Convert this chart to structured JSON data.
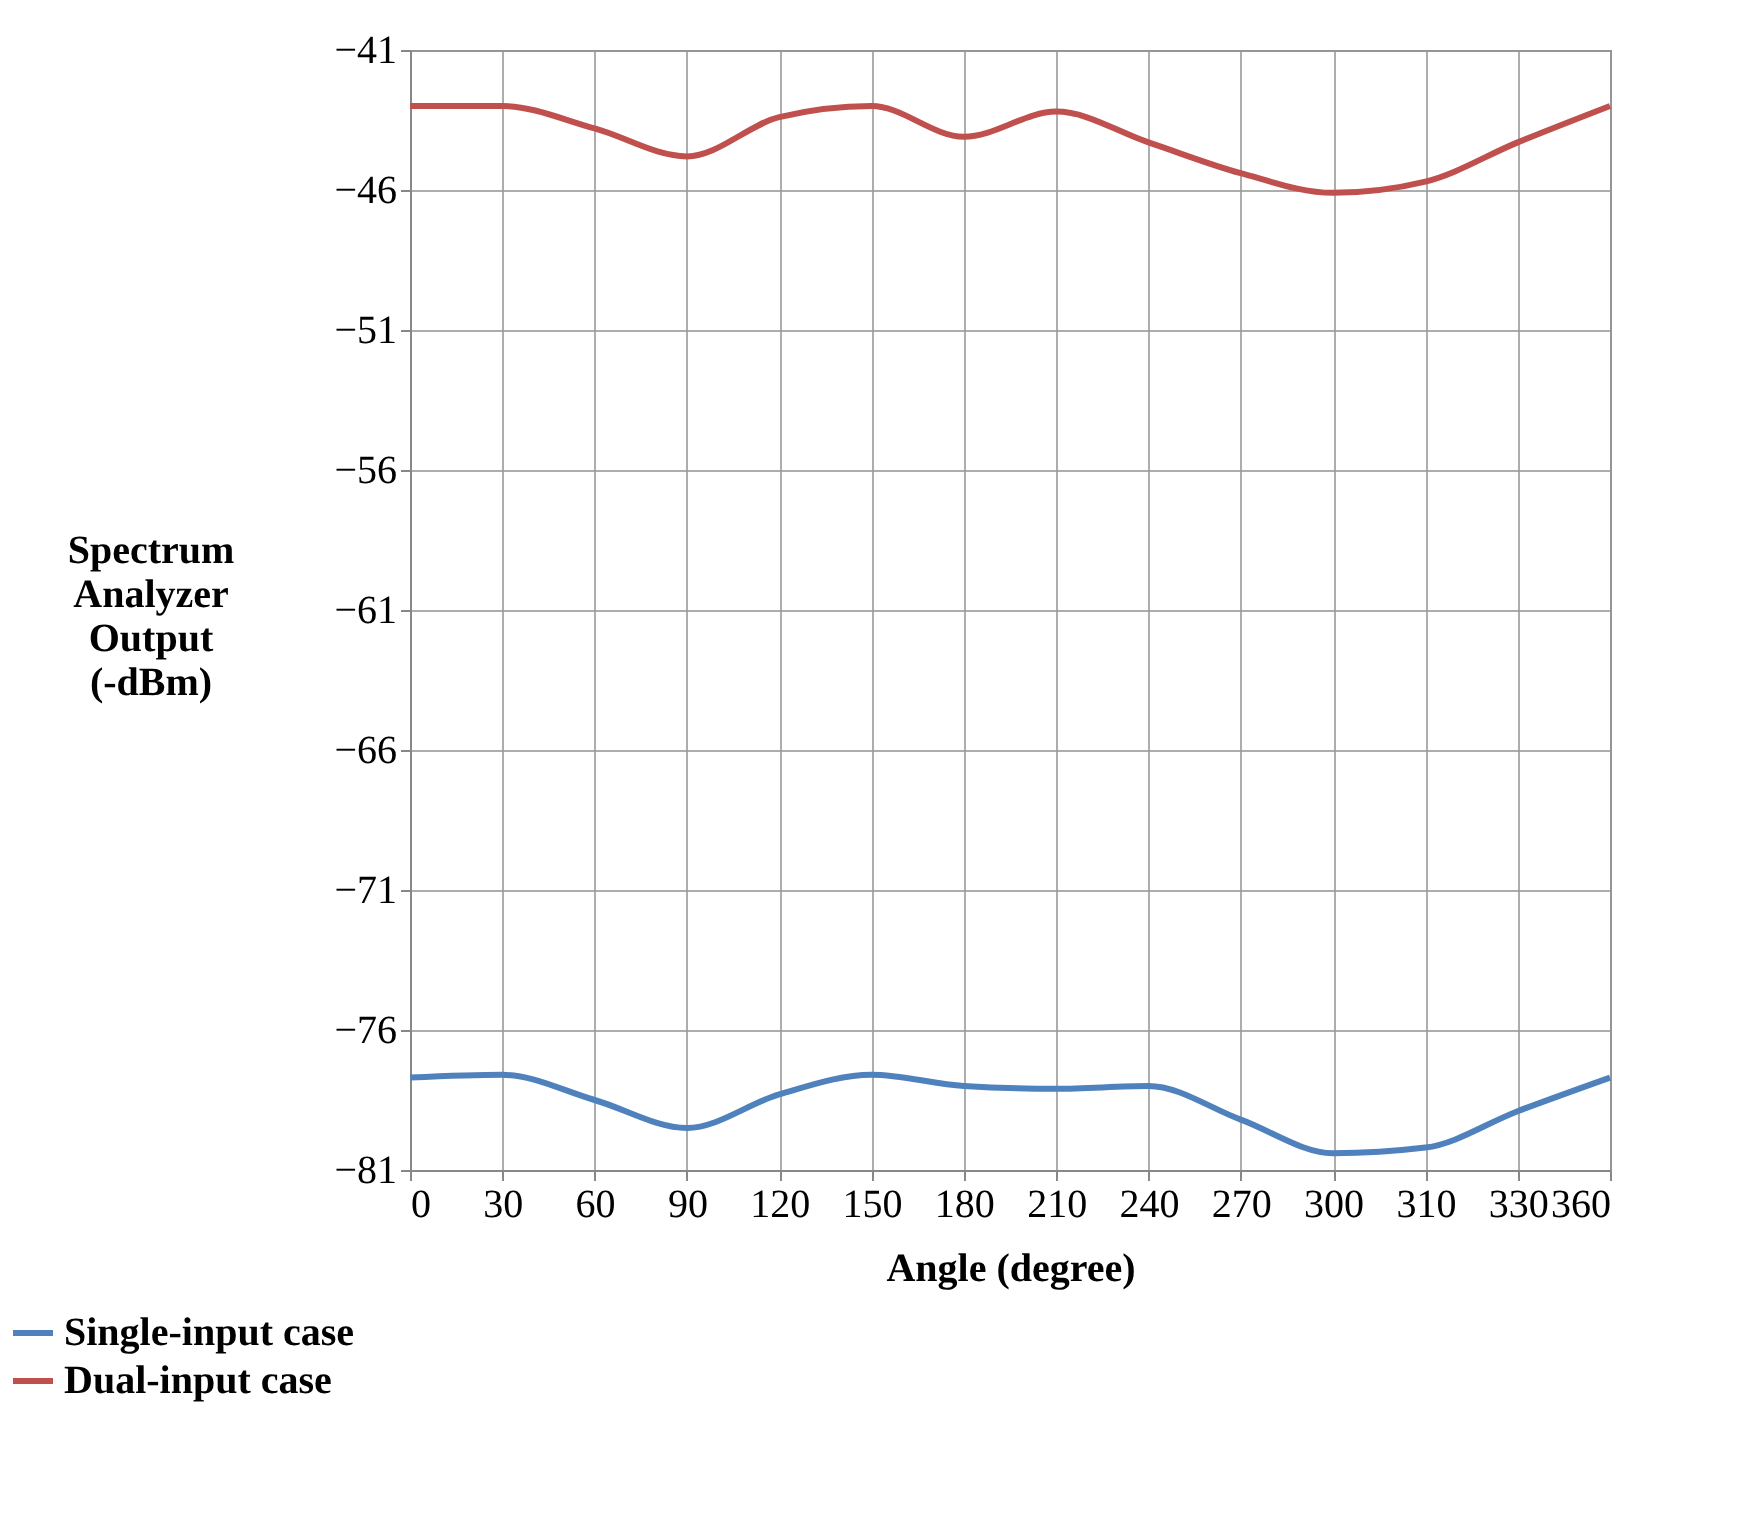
{
  "chart_data": {
    "type": "line",
    "xlabel": "Angle (degree)",
    "ylabel": "Spectrum\nAnalyzer\nOutput\n(-dBm)",
    "categories": [
      "0",
      "30",
      "60",
      "90",
      "120",
      "150",
      "180",
      "210",
      "240",
      "270",
      "300",
      "310",
      "330",
      "360"
    ],
    "series": [
      {
        "name": "Single-input case",
        "color": "#4f81bd",
        "values": [
          -77.7,
          -77.6,
          -78.5,
          -79.5,
          -78.3,
          -77.6,
          -78.0,
          -78.1,
          -78.0,
          -79.2,
          -80.4,
          -80.2,
          -78.9,
          -77.7
        ]
      },
      {
        "name": "Dual-input case",
        "color": "#c0504d",
        "values": [
          -43.0,
          -43.0,
          -43.8,
          -44.8,
          -43.4,
          -43.0,
          -44.1,
          -43.2,
          -44.3,
          -45.4,
          -46.1,
          -45.7,
          -44.3,
          -43.0
        ]
      }
    ],
    "ylim": [
      -81,
      -41
    ],
    "yticks": [
      -81,
      -76,
      -71,
      -66,
      -61,
      -56,
      -51,
      -46,
      -41
    ],
    "grid": true,
    "legend": "bottom left",
    "marker": "none",
    "line_style": "solid"
  }
}
